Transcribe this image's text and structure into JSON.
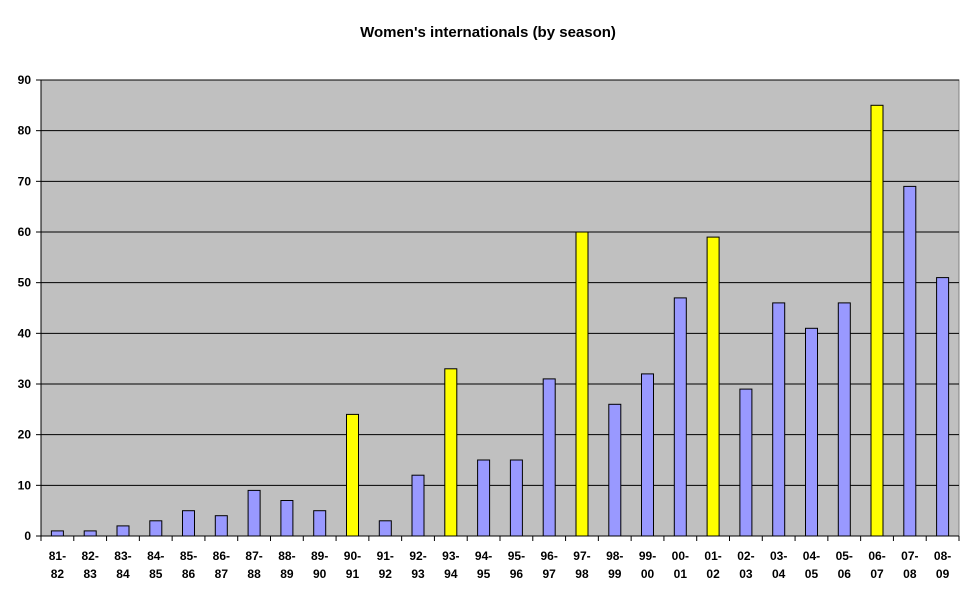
{
  "chart_data": {
    "type": "bar",
    "title": "Women's internationals (by season)",
    "xlabel": "",
    "ylabel": "",
    "ylim": [
      0,
      90
    ],
    "yticks": [
      0,
      10,
      20,
      30,
      40,
      50,
      60,
      70,
      80,
      90
    ],
    "grid": true,
    "legend": "none",
    "plot_background": "#c0c0c0",
    "bar_color": "#9999ff",
    "highlight_color": "#ffff00",
    "categories": [
      [
        "81-",
        "82"
      ],
      [
        "82-",
        "83"
      ],
      [
        "83-",
        "84"
      ],
      [
        "84-",
        "85"
      ],
      [
        "85-",
        "86"
      ],
      [
        "86-",
        "87"
      ],
      [
        "87-",
        "88"
      ],
      [
        "88-",
        "89"
      ],
      [
        "89-",
        "90"
      ],
      [
        "90-",
        "91"
      ],
      [
        "91-",
        "92"
      ],
      [
        "92-",
        "93"
      ],
      [
        "93-",
        "94"
      ],
      [
        "94-",
        "95"
      ],
      [
        "95-",
        "96"
      ],
      [
        "96-",
        "97"
      ],
      [
        "97-",
        "98"
      ],
      [
        "98-",
        "99"
      ],
      [
        "99-",
        "00"
      ],
      [
        "00-",
        "01"
      ],
      [
        "01-",
        "02"
      ],
      [
        "02-",
        "03"
      ],
      [
        "03-",
        "04"
      ],
      [
        "04-",
        "05"
      ],
      [
        "05-",
        "06"
      ],
      [
        "06-",
        "07"
      ],
      [
        "07-",
        "08"
      ],
      [
        "08-",
        "09"
      ]
    ],
    "values": [
      1,
      1,
      2,
      3,
      5,
      4,
      9,
      7,
      5,
      24,
      3,
      12,
      33,
      15,
      15,
      31,
      60,
      26,
      32,
      47,
      59,
      29,
      46,
      41,
      46,
      85,
      69,
      51
    ],
    "highlighted": [
      "90-91",
      "93-94",
      "97-98",
      "01-02",
      "06-07"
    ]
  }
}
